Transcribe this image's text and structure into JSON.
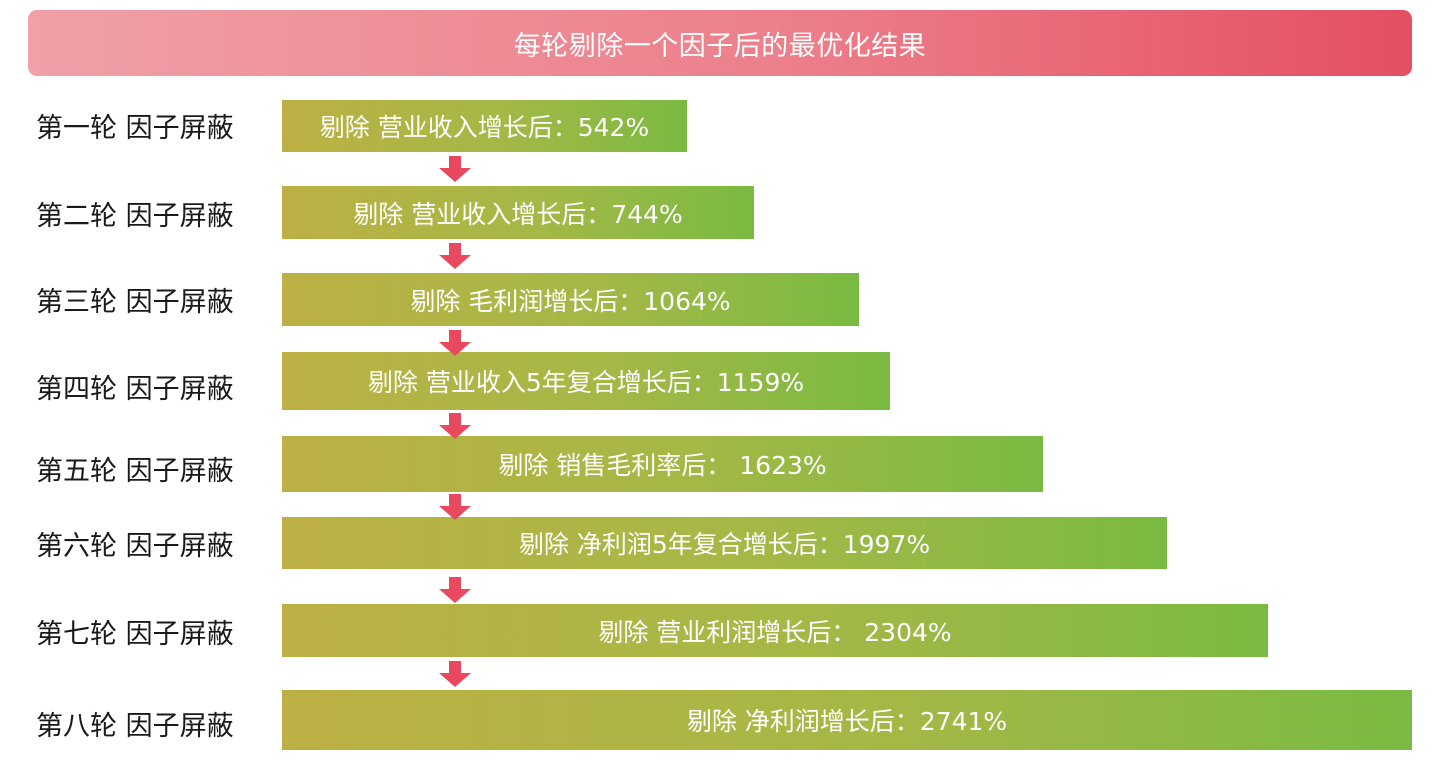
{
  "header": {
    "title": "每轮剔除一个因子后的最优化结果"
  },
  "rounds": [
    {
      "label": "第一轮 因子屏蔽",
      "bar_text": "剔除 营业收入增长后：542%",
      "value_percent": 542
    },
    {
      "label": "第二轮 因子屏蔽",
      "bar_text": "剔除 营业收入增长后：744%",
      "value_percent": 744
    },
    {
      "label": "第三轮 因子屏蔽",
      "bar_text": "剔除 毛利润增长后：1064%",
      "value_percent": 1064
    },
    {
      "label": "第四轮 因子屏蔽",
      "bar_text": "剔除 营业收入5年复合增长后：1159%",
      "value_percent": 1159
    },
    {
      "label": "第五轮 因子屏蔽",
      "bar_text": "剔除 销售毛利率后： 1623%",
      "value_percent": 1623
    },
    {
      "label": "第六轮 因子屏蔽",
      "bar_text": "剔除 净利润5年复合增长后：1997%",
      "value_percent": 1997
    },
    {
      "label": "第七轮 因子屏蔽",
      "bar_text": "剔除 营业利润增长后： 2304%",
      "value_percent": 2304
    },
    {
      "label": "第八轮 因子屏蔽",
      "bar_text": "剔除 净利润增长后：2741%",
      "value_percent": 2741
    }
  ],
  "colors": {
    "header_start": "#f0a0a7",
    "header_end": "#e44f62",
    "bar_start": "#bdb044",
    "bar_end": "#7aba42",
    "arrow": "#e8495f"
  },
  "icons": {
    "arrow": "down-arrow-icon"
  }
}
